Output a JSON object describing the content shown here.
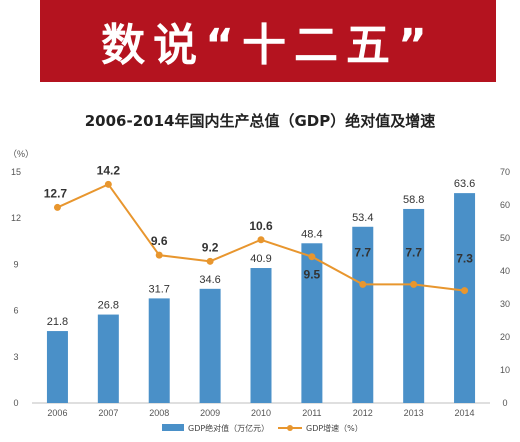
{
  "banner": {
    "title": "数说“十二五”"
  },
  "chart_data": {
    "type": "bar+line",
    "title": "2006-2014年国内生产总值（GDP）绝对值及增速",
    "categories": [
      "2006",
      "2007",
      "2008",
      "2009",
      "2010",
      "2011",
      "2012",
      "2013",
      "2014"
    ],
    "series": [
      {
        "name": "GDP绝对值（万亿元）",
        "type": "bar",
        "axis": "right",
        "color": "#4a90c8",
        "values": [
          21.8,
          26.8,
          31.7,
          34.6,
          40.9,
          48.4,
          53.4,
          58.8,
          63.6
        ]
      },
      {
        "name": "GDP增速（%）",
        "type": "line",
        "axis": "left",
        "color": "#e8962e",
        "values": [
          12.7,
          14.2,
          9.6,
          9.2,
          10.6,
          9.5,
          7.7,
          7.7,
          7.3
        ]
      }
    ],
    "left_axis": {
      "unit": "（%）",
      "ylim": [
        0,
        15
      ],
      "ticks": [
        0,
        3,
        6,
        9,
        12,
        15
      ]
    },
    "right_axis": {
      "ylim": [
        0,
        70
      ],
      "ticks": [
        0,
        10,
        20,
        30,
        40,
        50,
        60,
        70
      ]
    },
    "legend_position": "bottom",
    "grid": false
  }
}
